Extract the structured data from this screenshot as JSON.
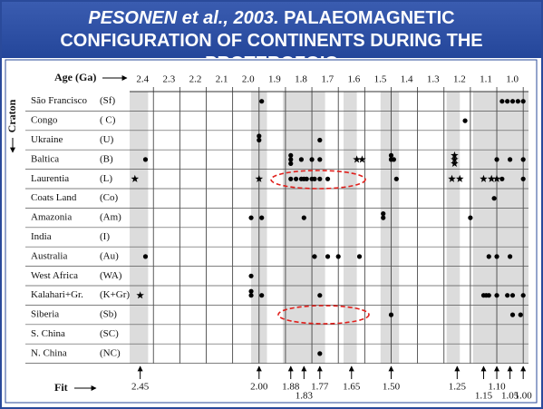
{
  "chart_data": {
    "type": "strip",
    "title_italic": "PESONEN et al., 2003.",
    "title": "PALAEOMAGNETIC CONFIGURATION OF CONTINENTS DURING THE PROTEROZOIC",
    "x_label": "Age (Ga)",
    "y_label": "Craton",
    "fit_label": "Fit",
    "categories": [
      "São Francisco",
      "Congo",
      "Ukraine",
      "Baltica",
      "Laurentia",
      "Coats Land",
      "Amazonia",
      "India",
      "Australia",
      "West Africa",
      "Kalahari+Gr.",
      "Siberia",
      "S. China",
      "N. China"
    ],
    "abbreviations": [
      "(Sf)",
      "( C)",
      "(U)",
      "(B)",
      "(L)",
      "(Co)",
      "(Am)",
      "(I)",
      "(Au)",
      "(WA)",
      "(K+Gr)",
      "(Sb)",
      "(SC)",
      "(NC)"
    ],
    "dots": [
      [
        1.99,
        1.08,
        1.06,
        1.04,
        1.02,
        1.0
      ],
      [
        1.22
      ],
      [
        2.0,
        2.0,
        1.77
      ],
      [
        2.43,
        1.88,
        1.88,
        1.88,
        1.84,
        1.8,
        1.77,
        1.5,
        1.5,
        1.49,
        1.1,
        1.05,
        1.0
      ],
      [
        1.88,
        1.86,
        1.84,
        1.83,
        1.82,
        1.8,
        1.79,
        1.77,
        1.74,
        1.48,
        1.08,
        1.0
      ],
      [
        1.11
      ],
      [
        2.03,
        1.99,
        1.83,
        1.53,
        1.53,
        1.2
      ],
      [],
      [
        2.43,
        1.79,
        1.74,
        1.7,
        1.62,
        1.13,
        1.1,
        1.05
      ],
      [
        2.03
      ],
      [
        2.03,
        2.03,
        1.99,
        1.77,
        1.15,
        1.14,
        1.13,
        1.1,
        1.06,
        1.04,
        1.0
      ],
      [
        1.5,
        1.04,
        1.01
      ],
      [],
      [
        1.77
      ]
    ],
    "stars": [
      [],
      [],
      [],
      [
        1.63,
        1.61,
        1.26,
        1.26,
        1.26
      ],
      [
        2.47,
        2.0,
        1.27,
        1.24,
        1.15,
        1.12,
        1.1
      ],
      [],
      [],
      [],
      [],
      [],
      [
        2.45
      ],
      [],
      [],
      []
    ],
    "bands": [
      [
        2.49,
        2.42
      ],
      [
        2.03,
        1.97
      ],
      [
        1.91,
        1.75
      ],
      [
        1.68,
        1.63
      ],
      [
        1.54,
        1.47
      ],
      [
        1.29,
        1.24
      ],
      [
        1.19,
        0.98
      ]
    ],
    "xlim": [
      2.49,
      0.98
    ],
    "xticks": [
      2.4,
      2.3,
      2.2,
      2.1,
      {
        "value": 2.0,
        "label": "2.0"
      },
      1.9,
      1.8,
      1.7,
      1.6,
      1.5,
      1.4,
      1.3,
      1.2,
      1.1,
      {
        "value": 1.0,
        "label": "1.0"
      }
    ],
    "fits": [
      2.45,
      {
        "value": 2.0,
        "label": "2.00"
      },
      1.88,
      1.83,
      1.77,
      1.65,
      {
        "value": 1.5,
        "label": "1.50"
      },
      1.25,
      1.15,
      {
        "value": 1.1,
        "label": "1.10"
      },
      1.05,
      {
        "value": 1.0,
        "label": "1.00"
      }
    ],
    "color": "#000000",
    "highlight_color": "#e0201c"
  }
}
